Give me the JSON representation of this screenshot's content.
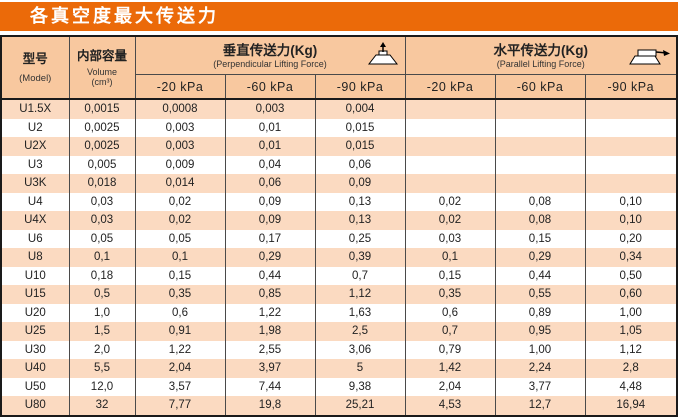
{
  "title": "各真空度最大传送力",
  "colors": {
    "accent": "#EB6A09",
    "header_bg": "#F8C89F",
    "stripe_bg": "#FBDAC1",
    "table_border": "#1a1a1a",
    "grid_line": "#4a4a4a",
    "title_text": "#FFFFFF",
    "body_text": "#222222"
  },
  "columns": {
    "model": {
      "zh": "型号",
      "en": "(Model)"
    },
    "volume": {
      "zh": "内部容量",
      "en": "Volume",
      "unit": "(cm³)"
    },
    "vertical": {
      "zh": "垂直传送力(Kg)",
      "en": "(Perpendicular Lifting Force)",
      "icon": "vertical-lift-icon",
      "kpa": [
        "-20 kPa",
        "-60 kPa",
        "-90 kPa"
      ]
    },
    "horizontal": {
      "zh": "水平传送力(Kg)",
      "en": "(Parallel Lifting Force)",
      "icon": "horizontal-lift-icon",
      "kpa": [
        "-20 kPa",
        "-60 kPa",
        "-90 kPa"
      ]
    }
  },
  "rows": [
    {
      "model": "U1.5X",
      "volume": "0,0015",
      "vertical": [
        "0,0008",
        "0,003",
        "0,004"
      ],
      "horizontal": [
        "",
        "",
        ""
      ]
    },
    {
      "model": "U2",
      "volume": "0,0025",
      "vertical": [
        "0,003",
        "0,01",
        "0,015"
      ],
      "horizontal": [
        "",
        "",
        ""
      ]
    },
    {
      "model": "U2X",
      "volume": "0,0025",
      "vertical": [
        "0,003",
        "0,01",
        "0,015"
      ],
      "horizontal": [
        "",
        "",
        ""
      ]
    },
    {
      "model": "U3",
      "volume": "0,005",
      "vertical": [
        "0,009",
        "0,04",
        "0,06"
      ],
      "horizontal": [
        "",
        "",
        ""
      ]
    },
    {
      "model": "U3K",
      "volume": "0,018",
      "vertical": [
        "0,014",
        "0,06",
        "0,09"
      ],
      "horizontal": [
        "",
        "",
        ""
      ]
    },
    {
      "model": "U4",
      "volume": "0,03",
      "vertical": [
        "0,02",
        "0,09",
        "0,13"
      ],
      "horizontal": [
        "0,02",
        "0,08",
        "0,10"
      ]
    },
    {
      "model": "U4X",
      "volume": "0,03",
      "vertical": [
        "0,02",
        "0,09",
        "0,13"
      ],
      "horizontal": [
        "0,02",
        "0,08",
        "0,10"
      ]
    },
    {
      "model": "U6",
      "volume": "0,05",
      "vertical": [
        "0,05",
        "0,17",
        "0,25"
      ],
      "horizontal": [
        "0,03",
        "0,15",
        "0,20"
      ]
    },
    {
      "model": "U8",
      "volume": "0,1",
      "vertical": [
        "0,1",
        "0,29",
        "0,39"
      ],
      "horizontal": [
        "0,1",
        "0,29",
        "0,34"
      ]
    },
    {
      "model": "U10",
      "volume": "0,18",
      "vertical": [
        "0,15",
        "0,44",
        "0,7"
      ],
      "horizontal": [
        "0,15",
        "0,44",
        "0,50"
      ]
    },
    {
      "model": "U15",
      "volume": "0,5",
      "vertical": [
        "0,35",
        "0,85",
        "1,12"
      ],
      "horizontal": [
        "0,35",
        "0,55",
        "0,60"
      ]
    },
    {
      "model": "U20",
      "volume": "1,0",
      "vertical": [
        "0,6",
        "1,22",
        "1,63"
      ],
      "horizontal": [
        "0,6",
        "0,89",
        "1,00"
      ]
    },
    {
      "model": "U25",
      "volume": "1,5",
      "vertical": [
        "0,91",
        "1,98",
        "2,5"
      ],
      "horizontal": [
        "0,7",
        "0,95",
        "1,05"
      ]
    },
    {
      "model": "U30",
      "volume": "2,0",
      "vertical": [
        "1,22",
        "2,55",
        "3,06"
      ],
      "horizontal": [
        "0,79",
        "1,00",
        "1,12"
      ]
    },
    {
      "model": "U40",
      "volume": "5,5",
      "vertical": [
        "2,04",
        "3,97",
        "5"
      ],
      "horizontal": [
        "1,42",
        "2,24",
        "2,8"
      ]
    },
    {
      "model": "U50",
      "volume": "12,0",
      "vertical": [
        "3,57",
        "7,44",
        "9,38"
      ],
      "horizontal": [
        "2,04",
        "3,77",
        "4,48"
      ]
    },
    {
      "model": "U80",
      "volume": "32",
      "vertical": [
        "7,77",
        "19,8",
        "25,21"
      ],
      "horizontal": [
        "4,53",
        "12,7",
        "16,94"
      ]
    }
  ]
}
